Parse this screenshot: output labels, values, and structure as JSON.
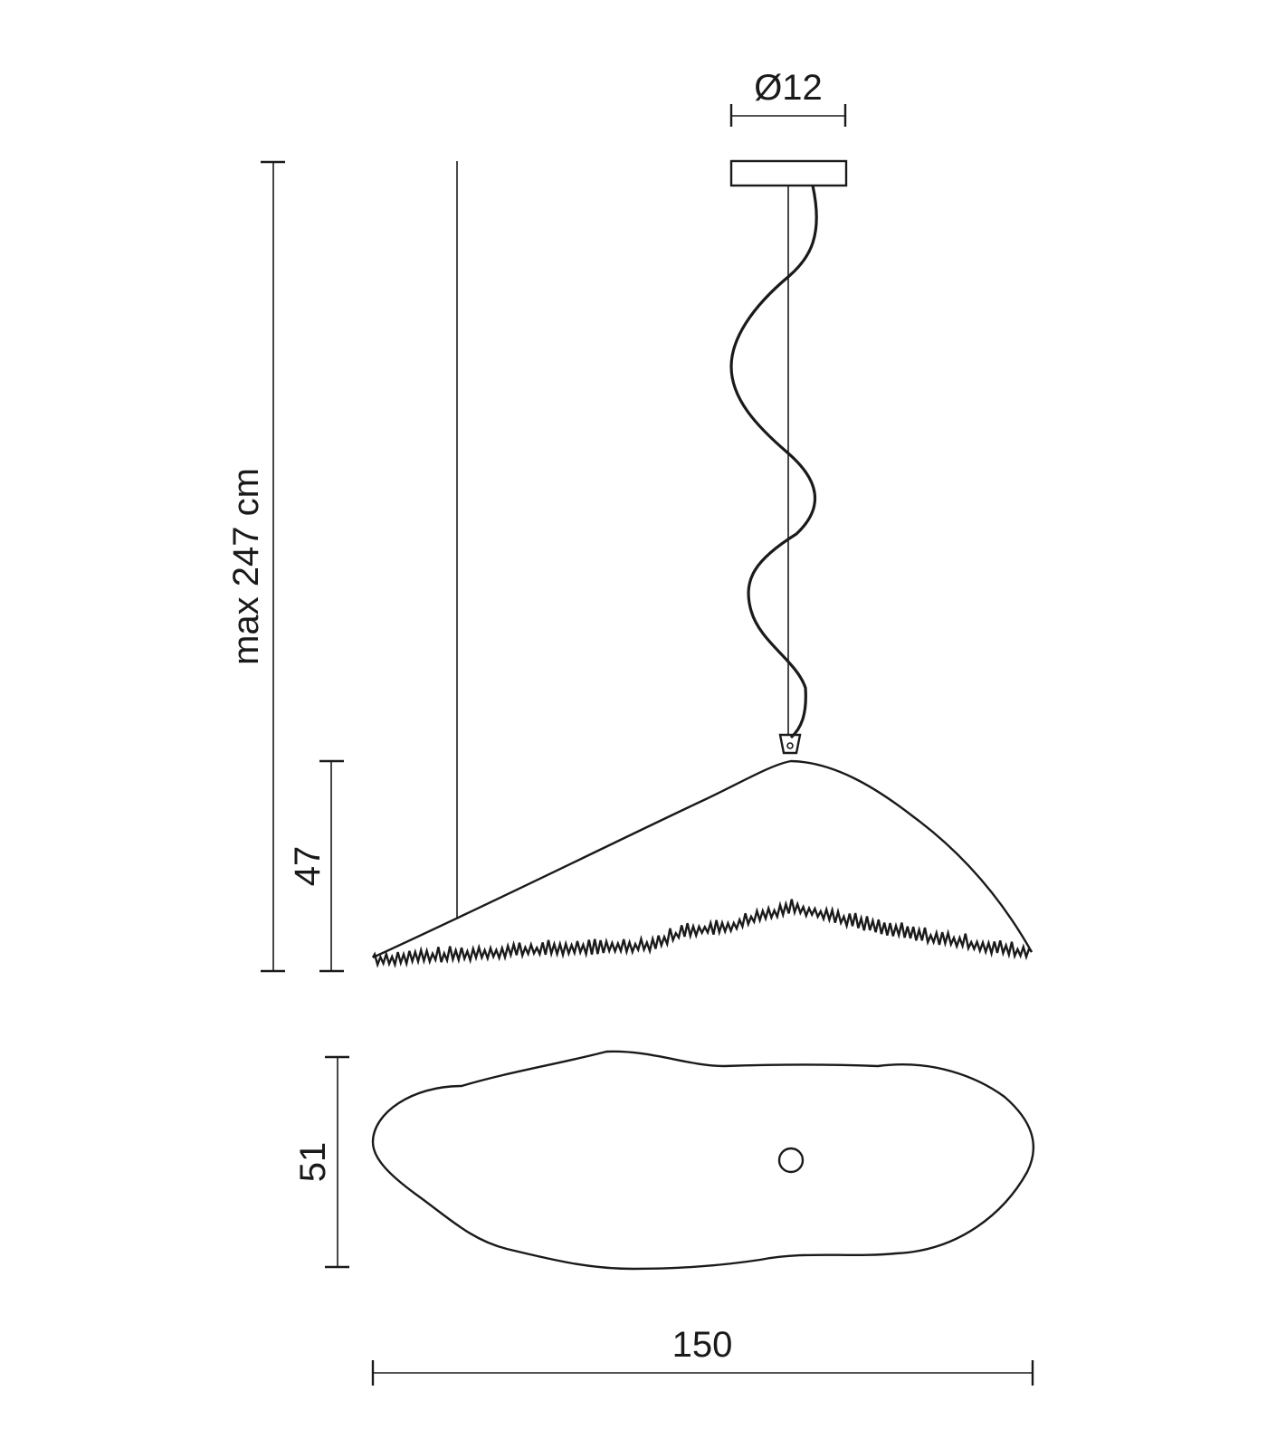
{
  "dimensions": {
    "canopy_diameter": "Ø12",
    "max_height": "max 247 cm",
    "shade_height": "47",
    "shade_depth": "51",
    "shade_width": "150"
  },
  "colors": {
    "line": "#1a1a1a",
    "background": "#ffffff"
  }
}
